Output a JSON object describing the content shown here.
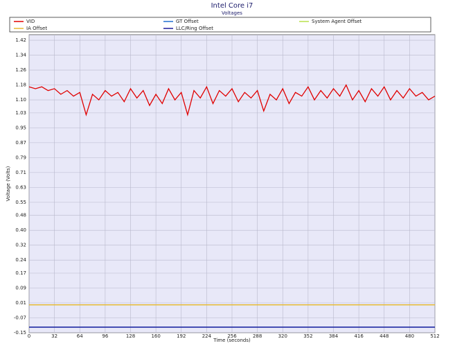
{
  "chart_data": {
    "type": "line",
    "title": "Intel Core i7",
    "subtitle": "Voltages",
    "x_label": "Time (seconds)",
    "y_label": "Voltage (Volts)",
    "xlim": [
      0,
      512
    ],
    "xticks": [
      0,
      32,
      64,
      96,
      128,
      160,
      192,
      224,
      256,
      288,
      320,
      352,
      384,
      416,
      448,
      480,
      512
    ],
    "ylim": [
      -0.15,
      1.45
    ],
    "yticks": [
      -0.15,
      -0.07,
      0.01,
      0.09,
      0.17,
      0.24,
      0.32,
      {
        "value": 0.4,
        "label": "0.40"
      },
      0.48,
      0.55,
      0.63,
      0.71,
      0.79,
      0.87,
      0.95,
      1.03,
      {
        "value": 1.1,
        "label": "1.10"
      },
      1.18,
      1.26,
      1.34,
      1.42
    ],
    "grid": true,
    "series": [
      {
        "name": "VID",
        "color": "#e00000",
        "x": [
          0,
          8,
          16,
          24,
          32,
          40,
          48,
          56,
          64,
          72,
          80,
          88,
          96,
          104,
          112,
          120,
          128,
          136,
          144,
          152,
          160,
          168,
          176,
          184,
          192,
          200,
          208,
          216,
          224,
          232,
          240,
          248,
          256,
          264,
          272,
          280,
          288,
          296,
          304,
          312,
          320,
          328,
          336,
          344,
          352,
          360,
          368,
          376,
          384,
          392,
          400,
          408,
          416,
          424,
          432,
          440,
          448,
          456,
          464,
          472,
          480,
          488,
          496,
          504,
          512
        ],
        "values": [
          1.17,
          1.16,
          1.17,
          1.15,
          1.16,
          1.13,
          1.15,
          1.12,
          1.14,
          1.02,
          1.13,
          1.1,
          1.15,
          1.12,
          1.14,
          1.09,
          1.16,
          1.11,
          1.15,
          1.07,
          1.13,
          1.08,
          1.16,
          1.1,
          1.14,
          1.02,
          1.15,
          1.11,
          1.17,
          1.08,
          1.15,
          1.12,
          1.16,
          1.09,
          1.14,
          1.11,
          1.15,
          1.04,
          1.13,
          1.1,
          1.16,
          1.08,
          1.14,
          1.12,
          1.17,
          1.1,
          1.15,
          1.11,
          1.16,
          1.12,
          1.18,
          1.1,
          1.15,
          1.09,
          1.16,
          1.12,
          1.17,
          1.1,
          1.15,
          1.11,
          1.16,
          1.12,
          1.14,
          1.1,
          1.12
        ]
      },
      {
        "name": "GT Offset",
        "color": "#1f6fd0",
        "x": [
          0,
          512
        ],
        "values": [
          -0.12,
          -0.12
        ]
      },
      {
        "name": "System Agent Offset",
        "color": "#b8e04a",
        "x": [
          0,
          512
        ],
        "values": [
          0,
          0
        ]
      },
      {
        "name": "IA Offset",
        "color": "#e8b830",
        "x": [
          0,
          512
        ],
        "values": [
          0,
          0
        ]
      },
      {
        "name": "LLC/Ring Offset",
        "color": "#1a1a9a",
        "x": [
          0,
          512
        ],
        "values": [
          -0.12,
          -0.12
        ]
      }
    ]
  }
}
